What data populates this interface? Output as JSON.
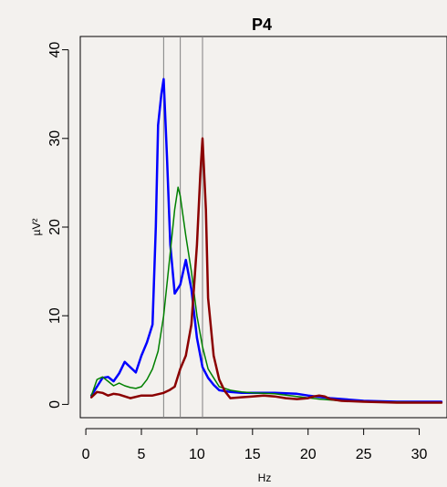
{
  "chart_data": {
    "type": "line",
    "title": "P4",
    "xlabel": "Hz",
    "ylabel": "µV²",
    "xlim": [
      -0.5,
      32.5
    ],
    "ylim": [
      -1.5,
      41.5
    ],
    "xticks": [
      0,
      5,
      10,
      15,
      20,
      25,
      30
    ],
    "yticks": [
      0,
      10,
      20,
      30,
      40
    ],
    "grid": false,
    "vlines": [
      7.0,
      8.5,
      10.5
    ],
    "series": [
      {
        "color": "#0000ff",
        "width": 2.5,
        "x": [
          0.5,
          1.0,
          1.5,
          2.0,
          2.5,
          3.0,
          3.5,
          4.0,
          4.5,
          5.0,
          5.5,
          6.0,
          6.3,
          6.5,
          6.8,
          7.0,
          7.3,
          7.6,
          8.0,
          8.5,
          9.0,
          9.5,
          10.0,
          10.5,
          11.0,
          11.5,
          12.0,
          13.0,
          14.0,
          15.0,
          17.0,
          19.0,
          20.0,
          22.0,
          25.0,
          28.0,
          32.0
        ],
        "y": [
          1.0,
          2.0,
          3.0,
          3.1,
          2.6,
          3.5,
          4.8,
          4.2,
          3.6,
          5.5,
          7.0,
          9.0,
          20.0,
          31.5,
          35.0,
          36.7,
          28.0,
          18.0,
          12.5,
          13.5,
          16.3,
          13.0,
          7.5,
          4.2,
          3.0,
          2.2,
          1.6,
          1.4,
          1.3,
          1.3,
          1.3,
          1.2,
          1.0,
          0.7,
          0.4,
          0.3,
          0.3
        ]
      },
      {
        "color": "#008000",
        "width": 1.5,
        "x": [
          0.5,
          1.0,
          1.5,
          2.0,
          2.5,
          3.0,
          3.5,
          4.0,
          4.5,
          5.0,
          5.5,
          6.0,
          6.5,
          7.0,
          7.5,
          8.0,
          8.3,
          8.5,
          9.0,
          9.5,
          10.0,
          10.5,
          11.0,
          11.5,
          12.0,
          13.0,
          14.0,
          15.0,
          17.0,
          19.0,
          21.0,
          23.0,
          26.0,
          32.0
        ],
        "y": [
          1.0,
          2.8,
          3.1,
          2.6,
          2.1,
          2.4,
          2.1,
          1.9,
          1.8,
          2.0,
          2.8,
          4.0,
          6.0,
          10.0,
          16.0,
          22.0,
          24.5,
          23.5,
          19.0,
          15.0,
          10.0,
          6.5,
          4.0,
          3.0,
          2.0,
          1.6,
          1.4,
          1.3,
          1.2,
          0.9,
          0.6,
          0.4,
          0.3,
          0.2
        ]
      },
      {
        "color": "#8b0000",
        "width": 2.5,
        "x": [
          0.5,
          1.0,
          1.5,
          2.0,
          2.5,
          3.0,
          4.0,
          5.0,
          6.0,
          7.0,
          7.5,
          8.0,
          8.5,
          9.0,
          9.5,
          10.0,
          10.3,
          10.5,
          10.8,
          11.0,
          11.5,
          12.0,
          12.5,
          13.0,
          14.0,
          15.0,
          16.0,
          17.0,
          18.0,
          19.0,
          20.0,
          20.5,
          21.0,
          21.5,
          22.0,
          23.0,
          25.0,
          28.0,
          32.0
        ],
        "y": [
          0.8,
          1.4,
          1.3,
          1.0,
          1.2,
          1.1,
          0.7,
          1.0,
          1.0,
          1.3,
          1.6,
          2.0,
          4.0,
          5.5,
          9.0,
          18.0,
          26.0,
          30.0,
          22.0,
          12.0,
          5.5,
          2.8,
          1.5,
          0.7,
          0.8,
          0.9,
          1.0,
          0.9,
          0.7,
          0.6,
          0.7,
          0.9,
          1.0,
          0.9,
          0.6,
          0.4,
          0.3,
          0.2,
          0.2
        ]
      }
    ]
  }
}
